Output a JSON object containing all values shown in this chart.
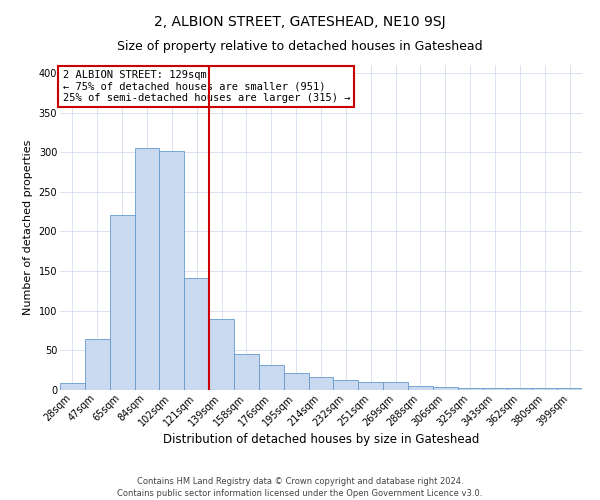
{
  "title": "2, ALBION STREET, GATESHEAD, NE10 9SJ",
  "subtitle": "Size of property relative to detached houses in Gateshead",
  "xlabel": "Distribution of detached houses by size in Gateshead",
  "ylabel": "Number of detached properties",
  "categories": [
    "28sqm",
    "47sqm",
    "65sqm",
    "84sqm",
    "102sqm",
    "121sqm",
    "139sqm",
    "158sqm",
    "176sqm",
    "195sqm",
    "214sqm",
    "232sqm",
    "251sqm",
    "269sqm",
    "288sqm",
    "306sqm",
    "325sqm",
    "343sqm",
    "362sqm",
    "380sqm",
    "399sqm"
  ],
  "values": [
    9,
    64,
    221,
    305,
    302,
    141,
    90,
    46,
    31,
    22,
    16,
    13,
    10,
    10,
    5,
    4,
    3,
    3,
    2,
    2,
    2
  ],
  "bar_color": "#c8d9f0",
  "bar_edge_color": "#6699cc",
  "vline_color": "#cc0000",
  "ylim": [
    0,
    410
  ],
  "yticks": [
    0,
    50,
    100,
    150,
    200,
    250,
    300,
    350,
    400
  ],
  "annotation_title": "2 ALBION STREET: 129sqm",
  "annotation_line1": "← 75% of detached houses are smaller (951)",
  "annotation_line2": "25% of semi-detached houses are larger (315) →",
  "annotation_box_color": "#cc0000",
  "footer1": "Contains HM Land Registry data © Crown copyright and database right 2024.",
  "footer2": "Contains public sector information licensed under the Open Government Licence v3.0.",
  "title_fontsize": 10,
  "subtitle_fontsize": 9,
  "xlabel_fontsize": 8.5,
  "ylabel_fontsize": 8,
  "tick_fontsize": 7,
  "annotation_fontsize": 7.5,
  "footer_fontsize": 6
}
